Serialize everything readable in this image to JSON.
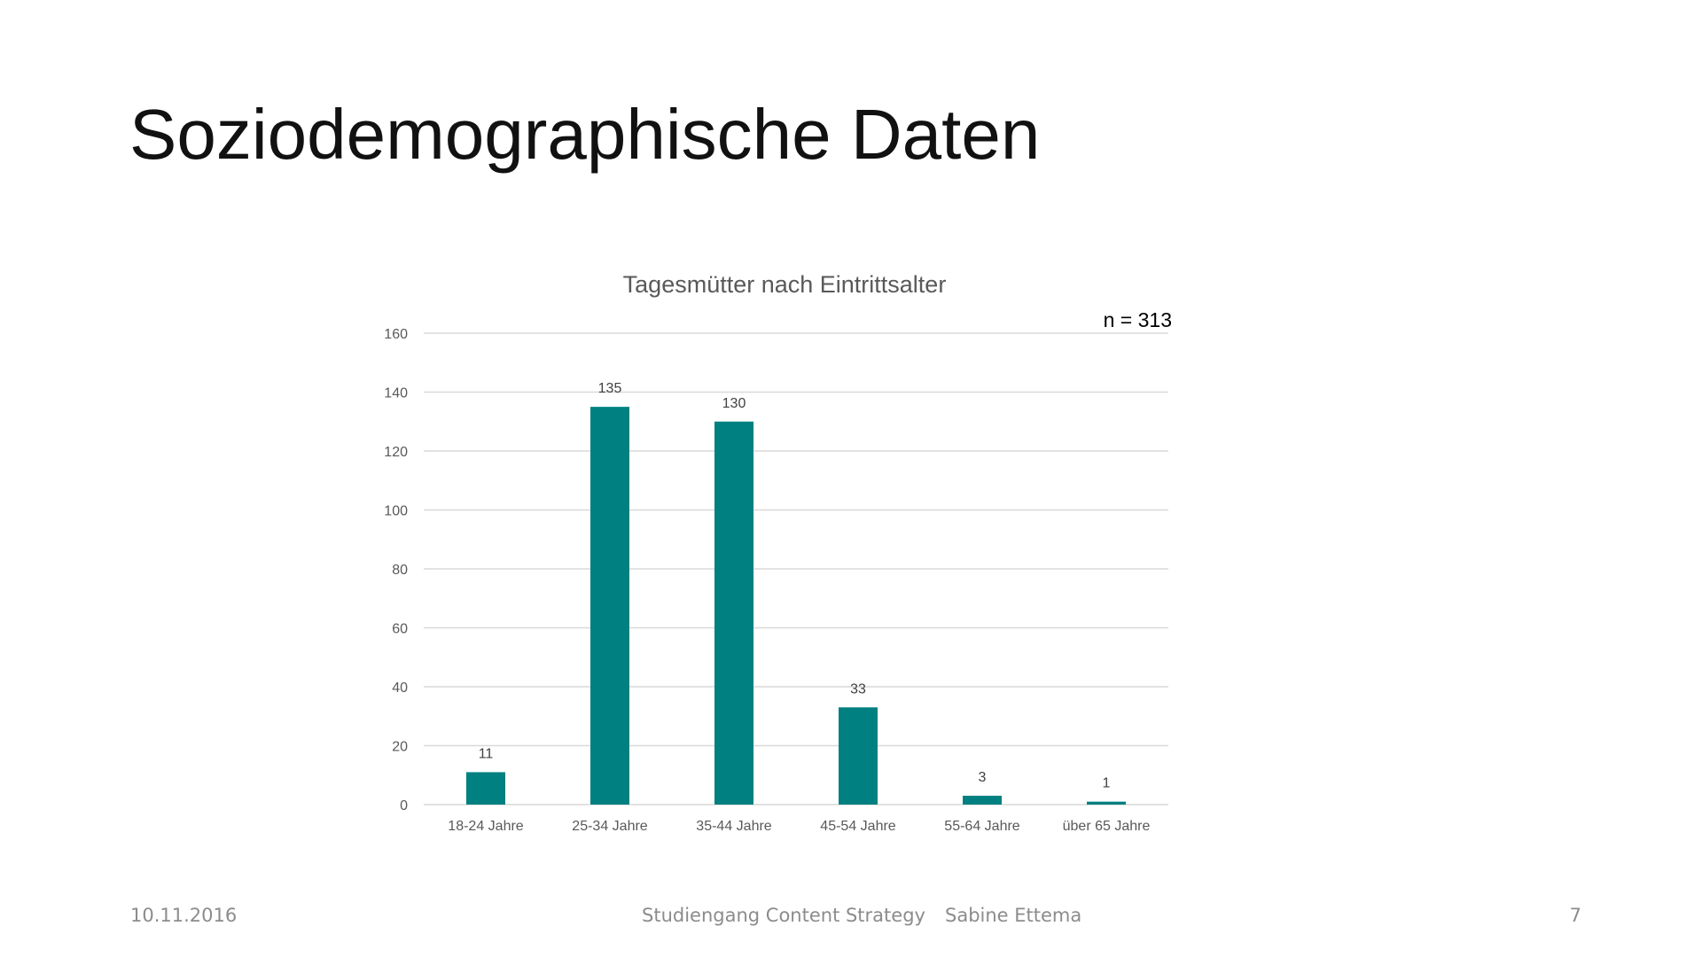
{
  "slide": {
    "title": "Soziodemographische Daten"
  },
  "footer": {
    "date": "10.11.2016",
    "program": "Studiengang Content Strategy",
    "author": "Sabine Ettema",
    "page_number": "7"
  },
  "colors": {
    "bar": "#008080",
    "grid": "#d9d9d9",
    "axis_text": "#595959",
    "title_text": "#595959"
  },
  "chart_data": {
    "type": "bar",
    "title": "Tagesmütter nach Eintrittsalter",
    "annotation": "n = 313",
    "categories": [
      "18-24 Jahre",
      "25-34 Jahre",
      "35-44 Jahre",
      "45-54 Jahre",
      "55-64 Jahre",
      "über 65 Jahre"
    ],
    "values": [
      11,
      135,
      130,
      33,
      3,
      1
    ],
    "data_labels": [
      "11",
      "135",
      "130",
      "33",
      "3",
      "1"
    ],
    "yticks": [
      0,
      20,
      40,
      60,
      80,
      100,
      120,
      140,
      160
    ],
    "ylim": [
      0,
      160
    ],
    "xlabel": "",
    "ylabel": "",
    "grid": true,
    "legend": "none"
  }
}
